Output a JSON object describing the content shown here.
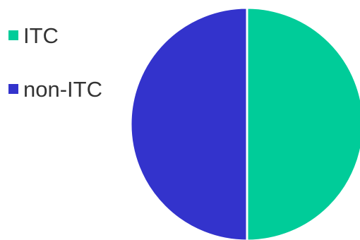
{
  "chart_data": {
    "type": "pie",
    "categories": [
      "ITC",
      "non-ITC"
    ],
    "values": [
      50,
      50
    ],
    "colors": [
      "#00cc99",
      "#3333cc"
    ],
    "title": "",
    "legend_position": "left"
  }
}
